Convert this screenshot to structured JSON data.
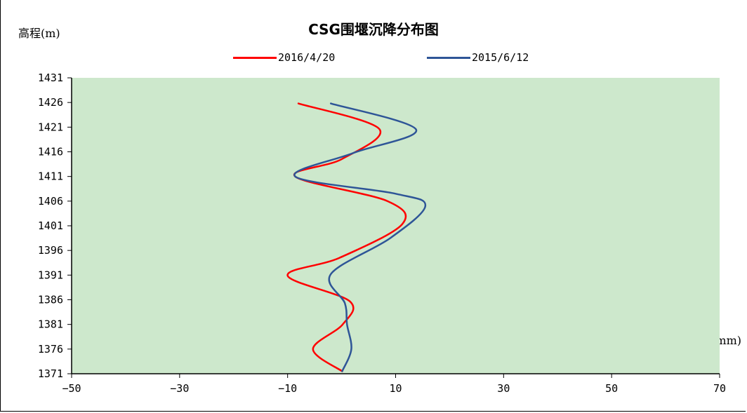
{
  "chart_data": {
    "type": "line",
    "title": "CSG围堰沉降分布图",
    "ylabel": "高程(m)",
    "xlabel": "沉降量(mm)",
    "xlim": [
      -50,
      70
    ],
    "ylim": [
      1371,
      1431
    ],
    "x_ticks": [
      "−50",
      "−30",
      "−10",
      "10",
      "30",
      "50",
      "70"
    ],
    "y_ticks": [
      "1431",
      "1426",
      "1421",
      "1416",
      "1411",
      "1406",
      "1401",
      "1396",
      "1391",
      "1386",
      "1381",
      "1376",
      "1371"
    ],
    "plot_background": "#cde8cc",
    "legend_position": "top",
    "series": [
      {
        "name": "2016/4/20",
        "color": "#ff0000",
        "points": [
          [
            -8.0,
            1425.8
          ],
          [
            7.0,
            1420.6
          ],
          [
            0.0,
            1414.5
          ],
          [
            -8.6,
            1411.0
          ],
          [
            8.5,
            1406.0
          ],
          [
            11.2,
            1401.3
          ],
          [
            -0.4,
            1394.5
          ],
          [
            -10.0,
            1390.9
          ],
          [
            1.5,
            1385.7
          ],
          [
            0.2,
            1381.0
          ],
          [
            -5.3,
            1376.0
          ],
          [
            0.1,
            1371.5
          ]
        ]
      },
      {
        "name": "2015/6/12",
        "color": "#2e5597",
        "points": [
          [
            -2.0,
            1425.8
          ],
          [
            13.8,
            1420.5
          ],
          [
            2.0,
            1415.7
          ],
          [
            -8.6,
            1411.0
          ],
          [
            10.0,
            1407.5
          ],
          [
            15.5,
            1405.0
          ],
          [
            9.0,
            1398.5
          ],
          [
            -2.0,
            1391.2
          ],
          [
            0.6,
            1385.3
          ],
          [
            1.0,
            1381.0
          ],
          [
            1.8,
            1376.0
          ],
          [
            0.1,
            1371.5
          ]
        ]
      }
    ]
  }
}
